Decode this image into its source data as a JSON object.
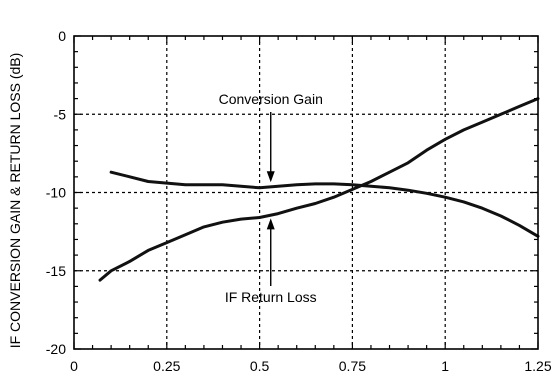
{
  "chart_data": {
    "type": "line",
    "title": "",
    "xlabel": "",
    "ylabel": "IF CONVERSION GAIN & RETURN LOSS (dB)",
    "xlim": [
      0,
      1.25
    ],
    "ylim": [
      -20,
      0
    ],
    "x_ticks": [
      0,
      0.25,
      0.5,
      0.75,
      1,
      1.25
    ],
    "x_tick_labels": [
      "0",
      "0.25",
      "0.5",
      "0.75",
      "1",
      "1.25"
    ],
    "y_ticks": [
      0,
      -5,
      -10,
      -15,
      -20
    ],
    "y_tick_labels": [
      "0",
      "-5",
      "-10",
      "-15",
      "-20"
    ],
    "grid": true,
    "series": [
      {
        "name": "Conversion Gain",
        "x": [
          0.1,
          0.15,
          0.2,
          0.25,
          0.3,
          0.35,
          0.4,
          0.45,
          0.5,
          0.55,
          0.6,
          0.65,
          0.7,
          0.75,
          0.8,
          0.85,
          0.9,
          0.95,
          1.0,
          1.05,
          1.1,
          1.15,
          1.2,
          1.25
        ],
        "y": [
          -8.7,
          -9.0,
          -9.3,
          -9.4,
          -9.5,
          -9.5,
          -9.5,
          -9.6,
          -9.7,
          -9.6,
          -9.5,
          -9.45,
          -9.45,
          -9.5,
          -9.6,
          -9.7,
          -9.85,
          -10.05,
          -10.3,
          -10.6,
          -11.0,
          -11.5,
          -12.1,
          -12.8
        ]
      },
      {
        "name": "IF Return Loss",
        "x": [
          0.07,
          0.1,
          0.15,
          0.2,
          0.25,
          0.3,
          0.35,
          0.4,
          0.45,
          0.5,
          0.55,
          0.6,
          0.65,
          0.7,
          0.75,
          0.8,
          0.85,
          0.9,
          0.95,
          1.0,
          1.05,
          1.1,
          1.15,
          1.2,
          1.25
        ],
        "y": [
          -15.6,
          -15.0,
          -14.4,
          -13.7,
          -13.2,
          -12.7,
          -12.2,
          -11.9,
          -11.7,
          -11.6,
          -11.35,
          -11.0,
          -10.7,
          -10.3,
          -9.8,
          -9.3,
          -8.7,
          -8.1,
          -7.3,
          -6.6,
          -6.0,
          -5.5,
          -5.0,
          -4.5,
          -4.0
        ]
      }
    ],
    "annotations": [
      {
        "text": "Conversion Gain",
        "arrow_to": [
          0.53,
          -9.6
        ]
      },
      {
        "text": "IF Return Loss",
        "arrow_to": [
          0.53,
          -11.4
        ]
      }
    ]
  }
}
